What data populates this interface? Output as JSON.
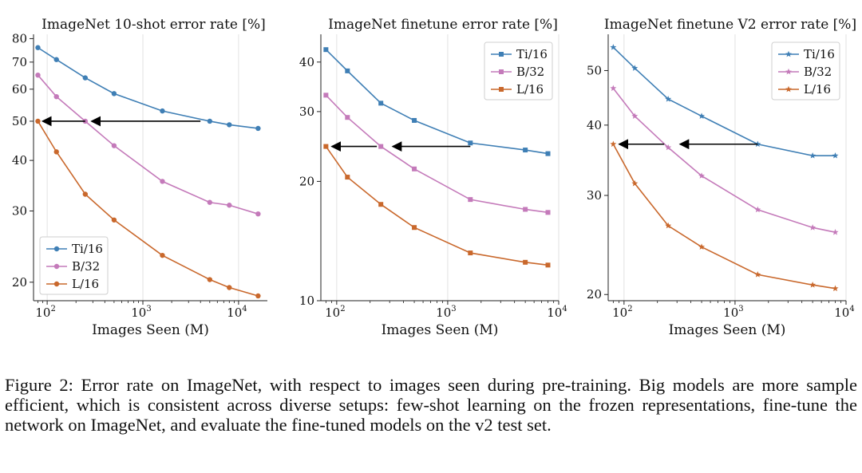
{
  "figure_caption": "Figure 2: Error rate on ImageNet, with respect to images seen during pre-training. Big models are more sample efficient, which is consistent across diverse setups: few-shot learning on the frozen representations, fine-tune the network on ImageNet, and evaluate the fine-tuned models on the v2 test set.",
  "series_colors": {
    "Ti/16": "#3f7fb5",
    "B/32": "#c47aba",
    "L/16": "#c9682c"
  },
  "chart_data": [
    {
      "type": "line",
      "title": "ImageNet 10-shot error rate [%]",
      "xlabel": "Images Seen (M)",
      "ylabel": "",
      "xscale": "log",
      "yscale": "log",
      "xlim": [
        72,
        20000
      ],
      "ylim": [
        18,
        82
      ],
      "xticks": [
        100,
        1000,
        10000
      ],
      "xtick_labels": [
        {
          "base": "10",
          "exp": "2"
        },
        {
          "base": "10",
          "exp": "3"
        },
        {
          "base": "10",
          "exp": "4"
        }
      ],
      "yticks": [
        20,
        30,
        40,
        50,
        60,
        70,
        80
      ],
      "ytick_labels": [
        "20",
        "30",
        "40",
        "50",
        "60",
        "70",
        "80"
      ],
      "grid": "x",
      "legend": "bottom-left",
      "marker": "circle",
      "arrows": [
        [
          250,
          50,
          80,
          50
        ],
        [
          4000,
          50,
          260,
          50
        ]
      ],
      "x": [
        80,
        125,
        250,
        500,
        1600,
        5000,
        8000,
        16000
      ],
      "series": [
        {
          "name": "Ti/16",
          "values": [
            76,
            71,
            64,
            58.5,
            53,
            50,
            49,
            48
          ]
        },
        {
          "name": "B/32",
          "values": [
            65,
            57.5,
            50,
            43.5,
            35.5,
            31.5,
            31,
            29.5
          ]
        },
        {
          "name": "L/16",
          "values": [
            50,
            42,
            33,
            28.5,
            23.3,
            20.3,
            19.4,
            18.5
          ]
        }
      ]
    },
    {
      "type": "line",
      "title": "ImageNet finetune error rate [%]",
      "xlabel": "Images Seen (M)",
      "ylabel": "",
      "xscale": "log",
      "yscale": "log",
      "xlim": [
        72,
        10000
      ],
      "ylim": [
        10,
        47
      ],
      "xticks": [
        100,
        1000,
        10000
      ],
      "xtick_labels": [
        {
          "base": "10",
          "exp": "2"
        },
        {
          "base": "10",
          "exp": "3"
        },
        {
          "base": "10",
          "exp": "4"
        }
      ],
      "yticks": [
        10,
        20,
        30,
        40
      ],
      "ytick_labels": [
        "10",
        "20",
        "30",
        "40"
      ],
      "grid": "x",
      "legend": "top-right",
      "marker": "square",
      "arrows": [
        [
          230,
          24.5,
          82,
          24.5
        ],
        [
          1600,
          24.5,
          290,
          24.5
        ]
      ],
      "x": [
        80,
        125,
        250,
        500,
        1600,
        5000,
        8000
      ],
      "series": [
        {
          "name": "Ti/16",
          "values": [
            43,
            38,
            31.5,
            28.5,
            25,
            24,
            23.5
          ]
        },
        {
          "name": "B/32",
          "values": [
            33,
            29,
            24.5,
            21.5,
            18,
            17,
            16.7
          ]
        },
        {
          "name": "L/16",
          "values": [
            24.5,
            20.5,
            17.5,
            15.3,
            13.2,
            12.5,
            12.3
          ]
        }
      ]
    },
    {
      "type": "line",
      "title": "ImageNet finetune V2 error rate [%]",
      "xlabel": "Images Seen (M)",
      "ylabel": "",
      "xscale": "log",
      "yscale": "log",
      "xlim": [
        72,
        10000
      ],
      "ylim": [
        19.5,
        58
      ],
      "xticks": [
        100,
        1000,
        10000
      ],
      "xtick_labels": [
        {
          "base": "10",
          "exp": "2"
        },
        {
          "base": "10",
          "exp": "3"
        },
        {
          "base": "10",
          "exp": "4"
        }
      ],
      "yticks": [
        20,
        30,
        40,
        50
      ],
      "ytick_labels": [
        "20",
        "30",
        "40",
        "50"
      ],
      "grid": "x",
      "legend": "top-right",
      "marker": "star",
      "arrows": [
        [
          230,
          37,
          82,
          37
        ],
        [
          1600,
          37,
          290,
          37
        ]
      ],
      "x": [
        80,
        125,
        250,
        500,
        1600,
        5000,
        8000
      ],
      "series": [
        {
          "name": "Ti/16",
          "values": [
            55,
            50.5,
            44.5,
            41.5,
            37,
            35.3,
            35.3
          ]
        },
        {
          "name": "B/32",
          "values": [
            46.5,
            41.5,
            36.5,
            32.5,
            28.3,
            26.3,
            25.8
          ]
        },
        {
          "name": "L/16",
          "values": [
            37,
            31.5,
            26.5,
            24.3,
            21.7,
            20.8,
            20.5
          ]
        }
      ]
    }
  ]
}
